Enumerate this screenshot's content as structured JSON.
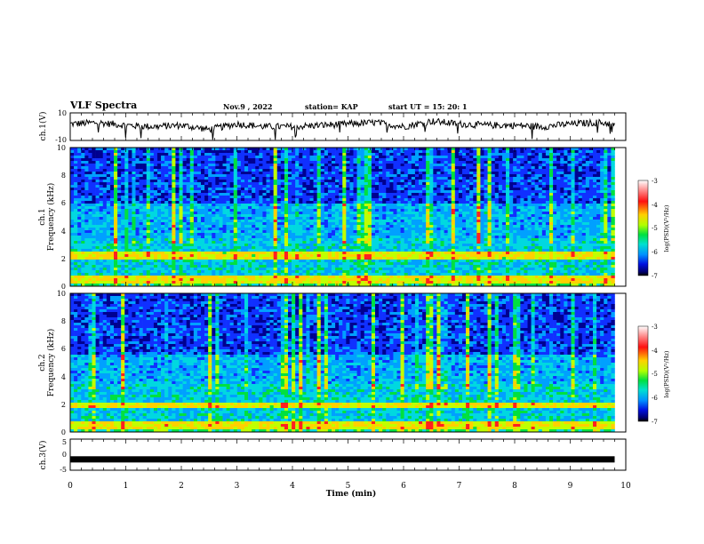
{
  "header": {
    "title": "VLF Spectra",
    "date": "Nov.9 , 2022",
    "station": "station= KAP",
    "start": "start UT = 15: 20: 1"
  },
  "colors": {
    "signal_line": "#000000",
    "colormap": [
      "#ffffff",
      "#ff2020",
      "#ffd000",
      "#c0ff00",
      "#00e040",
      "#00d8e0",
      "#00a0ff",
      "#1030ff",
      "#000090",
      "#000000"
    ]
  },
  "chart_data": [
    {
      "type": "line",
      "name": "ch1-waveform",
      "ylabel": "ch.1(V)",
      "ylim": [
        -10,
        10
      ],
      "ytick_labels": [
        "10",
        "-10"
      ],
      "xlim": [
        0,
        10
      ],
      "samples_x_min": [
        0,
        0.5,
        1,
        1.5,
        2,
        2.5,
        3,
        3.5,
        4,
        4.5,
        5,
        5.5,
        6,
        6.5,
        7,
        7.5,
        8,
        8.5,
        9,
        9.5,
        9.8
      ],
      "samples_y_V": [
        2,
        3,
        1,
        0,
        1,
        -2,
        2,
        0,
        0,
        1,
        2,
        3,
        0,
        4,
        2,
        1,
        1,
        0,
        2,
        3,
        2
      ]
    },
    {
      "type": "heatmap",
      "name": "ch1-spectrogram",
      "ylabel": "ch.1\nFrequency (kHz)",
      "ylim": [
        0,
        10
      ],
      "ytick_labels": [
        "0",
        "2",
        "4",
        "6",
        "8",
        "10"
      ],
      "xlim": [
        0,
        10
      ],
      "data_end_min": 9.8,
      "colorbar": {
        "label": "log(PSD)(V²/Hz)",
        "range": [
          -7,
          -3
        ],
        "tick_labels": [
          "-3",
          "-4",
          "-5",
          "-6",
          "-7"
        ]
      },
      "features": {
        "strong_bands_kHz": [
          0.3,
          0.6,
          2.1,
          2.3
        ],
        "noisy_band_kHz": [
          6.0,
          10.0
        ]
      }
    },
    {
      "type": "heatmap",
      "name": "ch2-spectrogram",
      "ylabel": "ch.2\nFrequency (kHz)",
      "ylim": [
        0,
        10
      ],
      "ytick_labels": [
        "0",
        "2",
        "4",
        "6",
        "8",
        "10"
      ],
      "xlim": [
        0,
        10
      ],
      "data_end_min": 9.8,
      "colorbar": {
        "label": "log(PSD)(V²/Hz)",
        "range": [
          -7,
          -3
        ],
        "tick_labels": [
          "-3",
          "-4",
          "-5",
          "-6",
          "-7"
        ]
      },
      "features": {
        "strong_bands_kHz": [
          0.3,
          0.6,
          1.8,
          2.0
        ],
        "noisy_band_kHz": [
          5.5,
          10.0
        ]
      }
    },
    {
      "type": "line",
      "name": "ch3-waveform",
      "ylabel": "ch.3(V)",
      "ylim": [
        -5,
        5
      ],
      "ytick_labels": [
        "5",
        "0",
        "-5"
      ],
      "xlim": [
        0,
        10
      ],
      "xlabel": "Time (min)",
      "xtick_labels": [
        "0",
        "1",
        "2",
        "3",
        "4",
        "5",
        "6",
        "7",
        "8",
        "9",
        "10"
      ],
      "level_V": -1.5
    }
  ]
}
